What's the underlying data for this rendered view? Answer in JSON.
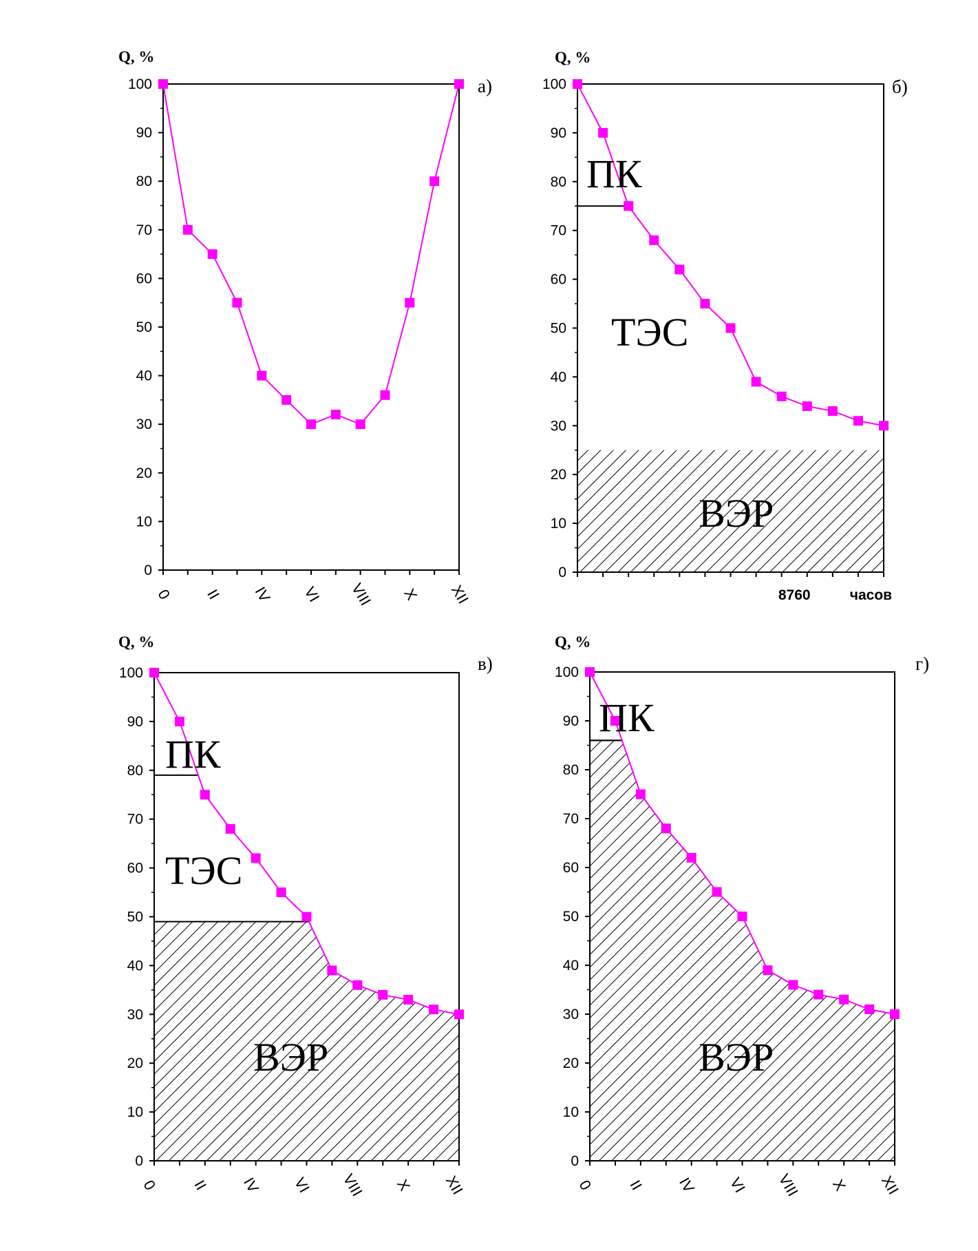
{
  "colors": {
    "series": "#ff00ff",
    "axis": "#000000",
    "hatch": "#000000",
    "background": "#ffffff"
  },
  "chart_data": [
    {
      "panel": "а)",
      "type": "line",
      "ylabel": "Q, %",
      "ylim": [
        0,
        100
      ],
      "yticks": [
        "0",
        "10",
        "20",
        "30",
        "40",
        "50",
        "60",
        "70",
        "80",
        "90",
        "100"
      ],
      "x_tick_labels": [
        "0",
        "II",
        "IV",
        "VI",
        "VIII",
        "X",
        "XII"
      ],
      "x": [
        0,
        1,
        2,
        3,
        4,
        5,
        6,
        7,
        8,
        9,
        10,
        11,
        12
      ],
      "series": [
        {
          "values": [
            100,
            70,
            65,
            55,
            40,
            35,
            30,
            32,
            30,
            36,
            55,
            80,
            100
          ]
        }
      ],
      "xlim": [
        0,
        12
      ],
      "grid": false
    },
    {
      "panel": "б)",
      "type": "area",
      "ylabel": "Q, %",
      "ylim": [
        0,
        100
      ],
      "yticks": [
        "0",
        "10",
        "20",
        "30",
        "40",
        "50",
        "60",
        "70",
        "80",
        "90",
        "100"
      ],
      "x_tick_labels": [
        "8760",
        "часов"
      ],
      "x": [
        0,
        1,
        2,
        3,
        4,
        5,
        6,
        7,
        8,
        9,
        10,
        11,
        12
      ],
      "series": [
        {
          "values": [
            100,
            90,
            75,
            68,
            62,
            55,
            50,
            39,
            36,
            34,
            33,
            31,
            30
          ]
        }
      ],
      "regions": [
        {
          "label": "ПК",
          "from": 75,
          "to": 100
        },
        {
          "label": "ТЭС",
          "from": 25,
          "to": 75
        },
        {
          "label": "ВЭР",
          "from": 0,
          "to": 25,
          "hatched": true
        }
      ],
      "xlim": [
        0,
        12
      ],
      "grid": false
    },
    {
      "panel": "в)",
      "type": "area",
      "ylabel": "Q, %",
      "ylim": [
        0,
        100
      ],
      "yticks": [
        "0",
        "10",
        "20",
        "30",
        "40",
        "50",
        "60",
        "70",
        "80",
        "90",
        "100"
      ],
      "x_tick_labels": [
        "0",
        "II",
        "IV",
        "VI",
        "VIII",
        "X",
        "XII"
      ],
      "x": [
        0,
        1,
        2,
        3,
        4,
        5,
        6,
        7,
        8,
        9,
        10,
        11,
        12
      ],
      "series": [
        {
          "values": [
            100,
            90,
            75,
            68,
            62,
            55,
            50,
            39,
            36,
            34,
            33,
            31,
            30
          ]
        }
      ],
      "regions": [
        {
          "label": "ПК",
          "from": 79,
          "to": 100
        },
        {
          "label": "ТЭС",
          "from": 49,
          "to": 79
        },
        {
          "label": "ВЭР",
          "from": 0,
          "to": 49,
          "hatched": true
        }
      ],
      "xlim": [
        0,
        12
      ],
      "grid": false
    },
    {
      "panel": "г)",
      "type": "area",
      "ylabel": "Q, %",
      "ylim": [
        0,
        100
      ],
      "yticks": [
        "0",
        "10",
        "20",
        "30",
        "40",
        "50",
        "60",
        "70",
        "80",
        "90",
        "100"
      ],
      "x_tick_labels": [
        "0",
        "II",
        "IV",
        "VI",
        "VIII",
        "X",
        "XII"
      ],
      "x": [
        0,
        1,
        2,
        3,
        4,
        5,
        6,
        7,
        8,
        9,
        10,
        11,
        12
      ],
      "series": [
        {
          "values": [
            100,
            90,
            75,
            68,
            62,
            55,
            50,
            39,
            36,
            34,
            33,
            31,
            30
          ]
        }
      ],
      "regions": [
        {
          "label": "ПК",
          "from": 86,
          "to": 100
        },
        {
          "label": "ВЭР",
          "from": 0,
          "to": 86,
          "hatched": true
        }
      ],
      "xlim": [
        0,
        12
      ],
      "grid": false
    }
  ]
}
